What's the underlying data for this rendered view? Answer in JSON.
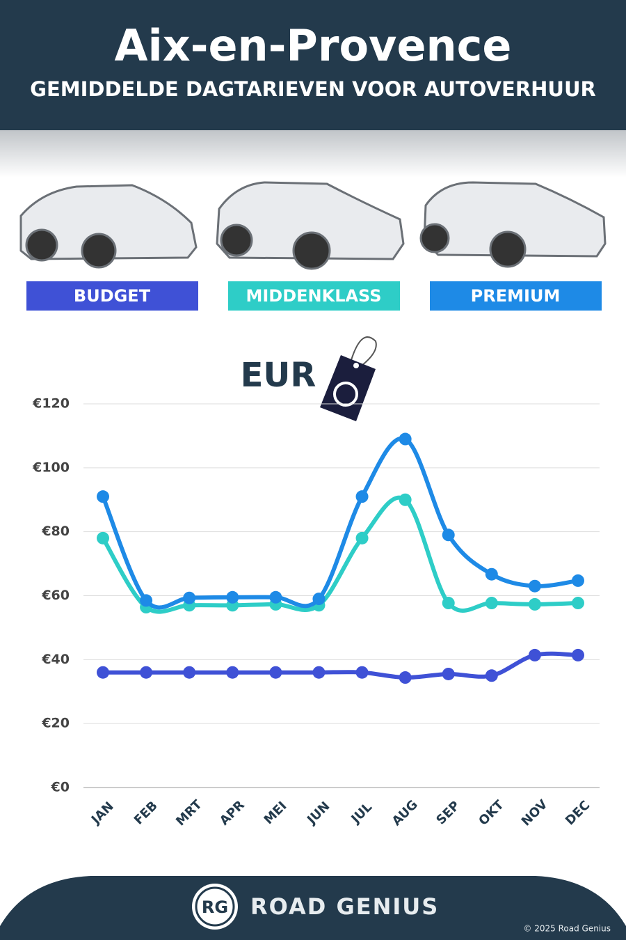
{
  "header": {
    "title": "Aix-en-Provence",
    "subtitle": "GEMIDDELDE DAGTARIEVEN VOOR AUTOVERHUUR"
  },
  "chart_data": {
    "type": "line",
    "annotation": "EUR",
    "categories": [
      "JAN",
      "FEB",
      "MRT",
      "APR",
      "MEI",
      "JUN",
      "JUL",
      "AUG",
      "SEP",
      "OKT",
      "NOV",
      "DEC"
    ],
    "series": [
      {
        "name": "BUDGET",
        "color": "#3f51d6",
        "values": [
          36,
          36,
          36,
          36,
          36,
          36,
          36,
          34.4,
          35.5,
          35,
          41.4,
          41.4
        ]
      },
      {
        "name": "MIDDENKLASS",
        "color": "#2ecdc7",
        "values": [
          78,
          56.4,
          57,
          57,
          57.3,
          57,
          78,
          90,
          57.7,
          57.7,
          57.3,
          57.7
        ]
      },
      {
        "name": "PREMIUM",
        "color": "#1e8ae6",
        "values": [
          91,
          58.5,
          59.3,
          59.5,
          59.5,
          59,
          91,
          109,
          79,
          66.7,
          63,
          64.7
        ]
      }
    ],
    "ylim": [
      0,
      120
    ],
    "yticks": [
      {
        "value": 0,
        "label": "€0"
      },
      {
        "value": 20,
        "label": "€20"
      },
      {
        "value": 40,
        "label": "€40"
      },
      {
        "value": 60,
        "label": "€60"
      },
      {
        "value": 80,
        "label": "€80"
      },
      {
        "value": 100,
        "label": "€100"
      },
      {
        "value": 120,
        "label": "€120"
      }
    ],
    "grid": true
  },
  "footer": {
    "logo": "RG",
    "brand": "ROAD GENIUS",
    "copyright": "© 2025 Road Genius"
  }
}
